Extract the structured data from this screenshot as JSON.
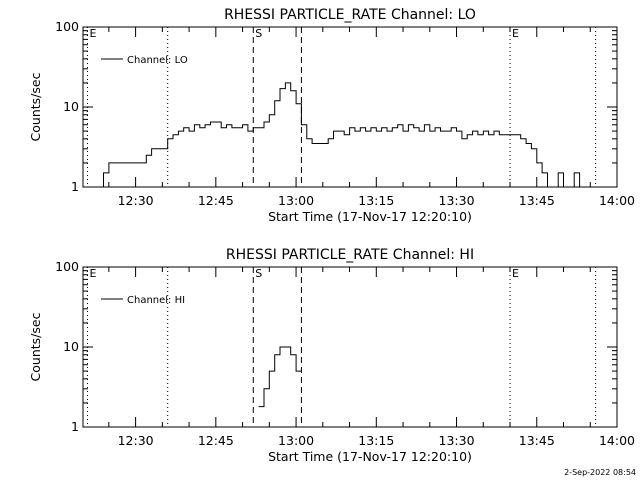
{
  "chart_data": [
    {
      "type": "line",
      "title": "RHESSI PARTICLE_RATE Channel: LO",
      "xlabel": "Start Time (17-Nov-17 12:20:10)",
      "ylabel": "Counts/sec",
      "yscale": "log",
      "xlim": [
        "12:20:10",
        "14:00"
      ],
      "ylim": [
        1,
        100
      ],
      "x_ticks": [
        "12:30",
        "12:45",
        "13:00",
        "13:15",
        "13:30",
        "13:45",
        "14:00"
      ],
      "y_ticks": [
        "1",
        "10",
        "100"
      ],
      "legend": "top-left",
      "series": [
        {
          "name": "Channel: LO",
          "x": [
            "12:21",
            "12:22",
            "12:23",
            "12:24",
            "12:25",
            "12:26",
            "12:27",
            "12:28",
            "12:29",
            "12:30",
            "12:31",
            "12:32",
            "12:33",
            "12:34",
            "12:35",
            "12:36",
            "12:37",
            "12:38",
            "12:39",
            "12:40",
            "12:41",
            "12:42",
            "12:43",
            "12:44",
            "12:45",
            "12:46",
            "12:47",
            "12:48",
            "12:49",
            "12:50",
            "12:51",
            "12:52",
            "12:53",
            "12:54",
            "12:55",
            "12:56",
            "12:57",
            "12:58",
            "12:59",
            "13:00",
            "13:01",
            "13:02",
            "13:03",
            "13:04",
            "13:05",
            "13:06",
            "13:07",
            "13:08",
            "13:09",
            "13:10",
            "13:11",
            "13:12",
            "13:13",
            "13:14",
            "13:15",
            "13:16",
            "13:17",
            "13:18",
            "13:19",
            "13:20",
            "13:21",
            "13:22",
            "13:23",
            "13:24",
            "13:25",
            "13:26",
            "13:27",
            "13:28",
            "13:29",
            "13:30",
            "13:31",
            "13:32",
            "13:33",
            "13:34",
            "13:35",
            "13:36",
            "13:37",
            "13:38",
            "13:39",
            "13:40",
            "13:41",
            "13:42",
            "13:43",
            "13:44",
            "13:45",
            "13:46",
            "13:47",
            "13:48",
            "13:49",
            "13:50",
            "13:51",
            "13:52",
            "13:53",
            "13:54"
          ],
          "values": [
            1,
            1,
            1,
            1.5,
            2,
            2,
            2,
            2,
            2,
            2,
            2,
            2.5,
            3,
            3,
            3,
            4,
            4.5,
            5,
            5.5,
            5,
            6,
            5.5,
            6,
            6.5,
            6.5,
            5.5,
            6,
            5.5,
            5.5,
            6,
            5,
            5.5,
            5.5,
            6.5,
            8,
            12,
            17,
            20,
            16,
            11,
            6,
            4,
            3.5,
            3.5,
            3.5,
            4,
            5,
            5,
            4.5,
            5.5,
            5,
            5.5,
            5,
            5.5,
            5,
            5.5,
            5,
            5.5,
            6,
            5,
            6,
            5.5,
            5,
            6,
            5,
            5.5,
            5,
            5,
            5.5,
            5,
            4,
            4.5,
            5,
            4.5,
            5,
            4.5,
            5,
            4.5,
            4.5,
            4.5,
            4.5,
            4,
            3.5,
            3,
            2,
            1.5,
            1,
            1,
            1.5,
            1,
            1,
            1.5,
            1,
            1
          ]
        }
      ],
      "annotations": [
        {
          "label": "E",
          "x": "12:21",
          "style": "dotted"
        },
        {
          "label": "",
          "x": "12:36",
          "style": "dotted"
        },
        {
          "label": "S",
          "x": "12:52",
          "style": "dashed"
        },
        {
          "label": "",
          "x": "13:01",
          "style": "dashed"
        },
        {
          "label": "E",
          "x": "13:40",
          "style": "dotted"
        },
        {
          "label": "",
          "x": "13:56",
          "style": "dotted"
        }
      ]
    },
    {
      "type": "line",
      "title": "RHESSI PARTICLE_RATE Channel: HI",
      "xlabel": "Start Time (17-Nov-17 12:20:10)",
      "ylabel": "Counts/sec",
      "yscale": "log",
      "xlim": [
        "12:20:10",
        "14:00"
      ],
      "ylim": [
        1,
        100
      ],
      "x_ticks": [
        "12:30",
        "12:45",
        "13:00",
        "13:15",
        "13:30",
        "13:45",
        "14:00"
      ],
      "y_ticks": [
        "1",
        "10",
        "100"
      ],
      "legend": "top-left",
      "series": [
        {
          "name": "Channel: HI",
          "x": [
            "12:53",
            "12:54",
            "12:55",
            "12:56",
            "12:57",
            "12:58",
            "12:59",
            "13:00"
          ],
          "values": [
            1.8,
            3,
            5,
            8,
            10,
            10,
            8,
            5
          ]
        }
      ],
      "annotations": [
        {
          "label": "E",
          "x": "12:21",
          "style": "dotted"
        },
        {
          "label": "",
          "x": "12:36",
          "style": "dotted"
        },
        {
          "label": "S",
          "x": "12:52",
          "style": "dashed"
        },
        {
          "label": "",
          "x": "13:01",
          "style": "dashed"
        },
        {
          "label": "E",
          "x": "13:40",
          "style": "dotted"
        },
        {
          "label": "",
          "x": "13:56",
          "style": "dotted"
        }
      ]
    }
  ],
  "footer": {
    "timestamp": "2-Sep-2022 08:54"
  }
}
